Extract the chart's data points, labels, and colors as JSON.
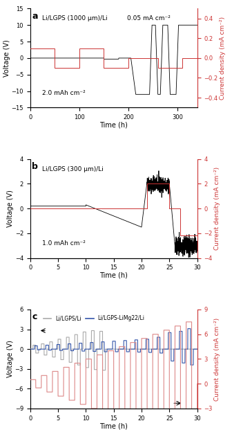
{
  "panel_a": {
    "label": "a",
    "title_left": "Li/LGPS (1000 μm)/Li",
    "title_right": "0.05 mA cm⁻²",
    "label_bottom": "2.0 mAh cm⁻²",
    "xlabel": "Time (h)",
    "ylabel_left": "Voltage (V)",
    "ylabel_right": "Current density (mA cm⁻²)",
    "ylim_left": [
      -15,
      15
    ],
    "ylim_right": [
      -0.5,
      0.5
    ],
    "yticks_left": [
      -15,
      -10,
      -5,
      0,
      5,
      10,
      15
    ],
    "yticks_right": [
      -0.4,
      -0.2,
      0,
      0.2,
      0.4
    ],
    "xlim": [
      0,
      340
    ],
    "xticks": [
      0,
      100,
      200,
      300
    ]
  },
  "panel_b": {
    "label": "b",
    "title_left": "Li/LGPS (300 μm)/Li",
    "label_bottom": "1.0 mAh cm⁻²",
    "xlabel": "Time (h)",
    "ylabel_left": "Voltage (V)",
    "ylabel_right": "Current density (mA cm⁻²)",
    "ylim_left": [
      -4,
      4
    ],
    "ylim_right": [
      -4,
      4
    ],
    "yticks_left": [
      -4,
      -2,
      0,
      2,
      4
    ],
    "yticks_right": [
      -4,
      -2,
      0,
      2,
      4
    ],
    "xlim": [
      0,
      30
    ],
    "xticks": [
      0,
      5,
      10,
      15,
      20,
      25,
      30
    ]
  },
  "panel_c": {
    "label": "c",
    "xlabel": "Time (h)",
    "ylabel_left": "Voltage (V)",
    "ylabel_right": "Current density (mA cm⁻²)",
    "ylim_left": [
      -9,
      6
    ],
    "ylim_right": [
      -3,
      9
    ],
    "yticks_left": [
      -9,
      -6,
      -3,
      0,
      3,
      6
    ],
    "yticks_right": [
      -3,
      0,
      3,
      6,
      9
    ],
    "xlim": [
      0,
      30
    ],
    "xticks": [
      0,
      5,
      10,
      15,
      20,
      25,
      30
    ],
    "legend_gray": "Li/LGPS/Li",
    "legend_blue": "Li/LGPS-LiMg22/Li"
  },
  "colors": {
    "black": "#000000",
    "dark_gray": "#555555",
    "gray": "#aaaaaa",
    "red": "#cc3333",
    "blue": "#3355aa",
    "light_red": "#dd8888"
  }
}
